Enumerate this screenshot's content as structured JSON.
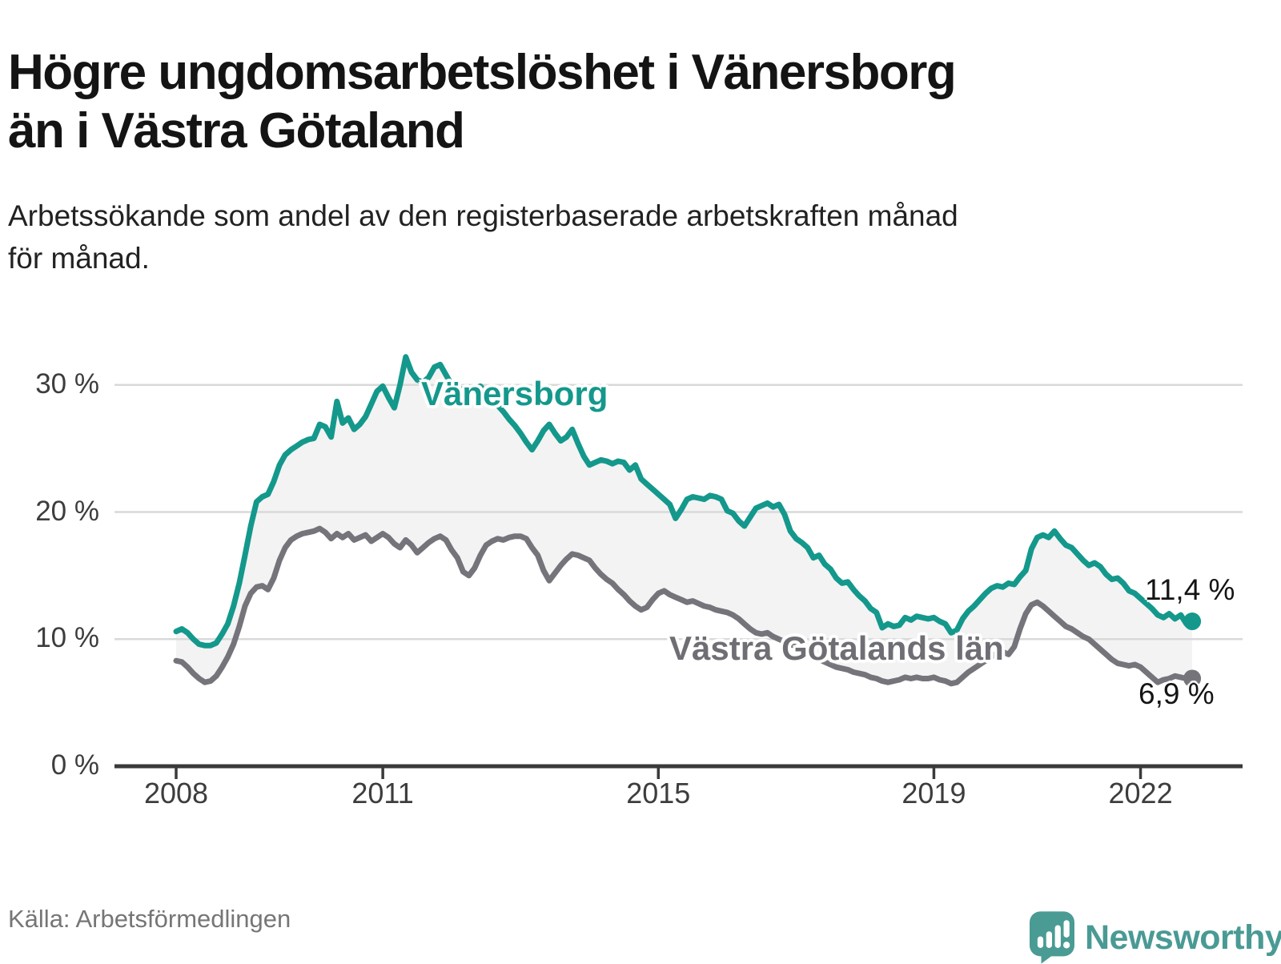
{
  "header": {
    "title_line1": "Högre ungdomsarbetslöshet i Vänersborg",
    "title_line2": "än i Västra Götaland",
    "subtitle_line1": "Arbetssökande som andel av den registerbaserade arbetskraften månad",
    "subtitle_line2": "för månad."
  },
  "footer": {
    "source": "Källa: Arbetsförmedlingen",
    "logo_text": "Newsworthy"
  },
  "chart_data": {
    "type": "line",
    "unit": "%",
    "frequency": "monthly",
    "x_start": "2008-01",
    "x_end": "2022-10",
    "ylim": [
      0,
      33
    ],
    "grid": "horizontal",
    "gridline_color": "#d9d9d9",
    "axis_color": "#3a3a3a",
    "band_fill_between_series": true,
    "band_fill_color": "#f3f3f3",
    "yticks": {
      "values": [
        0,
        10,
        20,
        30
      ],
      "labels": [
        "0 %",
        "10 %",
        "20 %",
        "30 %"
      ]
    },
    "xticks": {
      "values": [
        2008,
        2011,
        2015,
        2019,
        2022
      ],
      "labels": [
        "2008",
        "2011",
        "2015",
        "2019",
        "2022"
      ]
    },
    "series": [
      {
        "name": "Vänersborg",
        "color": "#14988c",
        "end_value": 11.4,
        "end_label": "11,4 %",
        "values": [
          10.6,
          10.8,
          10.5,
          10.0,
          9.6,
          9.5,
          9.5,
          9.7,
          10.4,
          11.2,
          12.6,
          14.4,
          16.6,
          18.9,
          20.8,
          21.2,
          21.4,
          22.4,
          23.7,
          24.5,
          24.9,
          25.2,
          25.5,
          25.7,
          25.8,
          26.9,
          26.7,
          25.9,
          28.7,
          27.0,
          27.4,
          26.5,
          26.9,
          27.5,
          28.5,
          29.5,
          29.9,
          29.0,
          28.2,
          30.0,
          32.2,
          31.0,
          30.4,
          30.2,
          30.6,
          31.4,
          31.6,
          30.8,
          30.0,
          29.4,
          29.7,
          29.8,
          29.6,
          29.9,
          29.4,
          28.9,
          28.4,
          27.9,
          27.3,
          26.8,
          26.2,
          25.5,
          24.9,
          25.6,
          26.4,
          26.9,
          26.2,
          25.6,
          25.9,
          26.5,
          25.4,
          24.4,
          23.7,
          23.9,
          24.1,
          24.0,
          23.8,
          24.0,
          23.9,
          23.3,
          23.7,
          22.6,
          22.2,
          21.8,
          21.4,
          21.0,
          20.6,
          19.5,
          20.2,
          21.0,
          21.2,
          21.1,
          21.0,
          21.3,
          21.2,
          21.0,
          20.1,
          19.9,
          19.3,
          18.9,
          19.6,
          20.3,
          20.5,
          20.7,
          20.4,
          20.6,
          19.8,
          18.5,
          17.9,
          17.6,
          17.2,
          16.4,
          16.6,
          15.9,
          15.5,
          14.8,
          14.4,
          14.5,
          13.9,
          13.4,
          13.0,
          12.4,
          12.1,
          10.9,
          11.2,
          11.0,
          11.1,
          11.7,
          11.5,
          11.8,
          11.7,
          11.6,
          11.7,
          11.4,
          11.2,
          10.5,
          10.7,
          11.6,
          12.2,
          12.6,
          13.1,
          13.6,
          14.0,
          14.2,
          14.1,
          14.4,
          14.3,
          14.9,
          15.4,
          17.1,
          18.0,
          18.2,
          18.0,
          18.5,
          17.9,
          17.4,
          17.2,
          16.7,
          16.2,
          15.8,
          16.0,
          15.7,
          15.1,
          14.7,
          14.8,
          14.4,
          13.8,
          13.6,
          13.2,
          12.8,
          12.4,
          11.9,
          11.7,
          12.0,
          11.6,
          11.9,
          11.2,
          11.4
        ]
      },
      {
        "name": "Västra Götalands län",
        "color": "#74747a",
        "end_value": 6.9,
        "end_label": "6,9 %",
        "values": [
          8.3,
          8.2,
          7.8,
          7.3,
          6.9,
          6.6,
          6.7,
          7.1,
          7.8,
          8.6,
          9.6,
          11.0,
          12.6,
          13.6,
          14.1,
          14.2,
          13.9,
          14.8,
          16.2,
          17.2,
          17.8,
          18.1,
          18.3,
          18.4,
          18.5,
          18.7,
          18.4,
          17.9,
          18.3,
          18.0,
          18.3,
          17.8,
          18.0,
          18.2,
          17.7,
          18.0,
          18.3,
          18.0,
          17.5,
          17.2,
          17.8,
          17.4,
          16.8,
          17.2,
          17.6,
          17.9,
          18.1,
          17.8,
          17.0,
          16.4,
          15.3,
          15.0,
          15.6,
          16.6,
          17.4,
          17.7,
          17.9,
          17.8,
          18.0,
          18.1,
          18.1,
          17.9,
          17.2,
          16.6,
          15.4,
          14.6,
          15.2,
          15.8,
          16.3,
          16.7,
          16.6,
          16.4,
          16.2,
          15.6,
          15.1,
          14.7,
          14.4,
          13.9,
          13.5,
          13.0,
          12.6,
          12.3,
          12.5,
          13.1,
          13.6,
          13.8,
          13.5,
          13.3,
          13.1,
          12.9,
          13.0,
          12.8,
          12.6,
          12.5,
          12.3,
          12.2,
          12.1,
          11.9,
          11.6,
          11.2,
          10.8,
          10.5,
          10.4,
          10.5,
          10.2,
          10.0,
          9.8,
          9.6,
          9.4,
          9.2,
          8.9,
          8.6,
          8.4,
          8.2,
          8.0,
          7.8,
          7.7,
          7.6,
          7.4,
          7.3,
          7.2,
          7.0,
          6.9,
          6.7,
          6.6,
          6.7,
          6.8,
          7.0,
          6.9,
          7.0,
          6.9,
          6.9,
          7.0,
          6.8,
          6.7,
          6.5,
          6.6,
          7.0,
          7.4,
          7.7,
          8.0,
          8.3,
          8.6,
          8.9,
          9.0,
          8.8,
          9.4,
          10.8,
          12.0,
          12.7,
          12.9,
          12.6,
          12.2,
          11.8,
          11.4,
          11.0,
          10.8,
          10.5,
          10.2,
          10.0,
          9.6,
          9.2,
          8.8,
          8.4,
          8.1,
          8.0,
          7.9,
          8.0,
          7.8,
          7.4,
          7.0,
          6.6,
          6.8,
          6.9,
          7.1,
          7.0,
          6.9,
          6.9
        ]
      }
    ]
  }
}
